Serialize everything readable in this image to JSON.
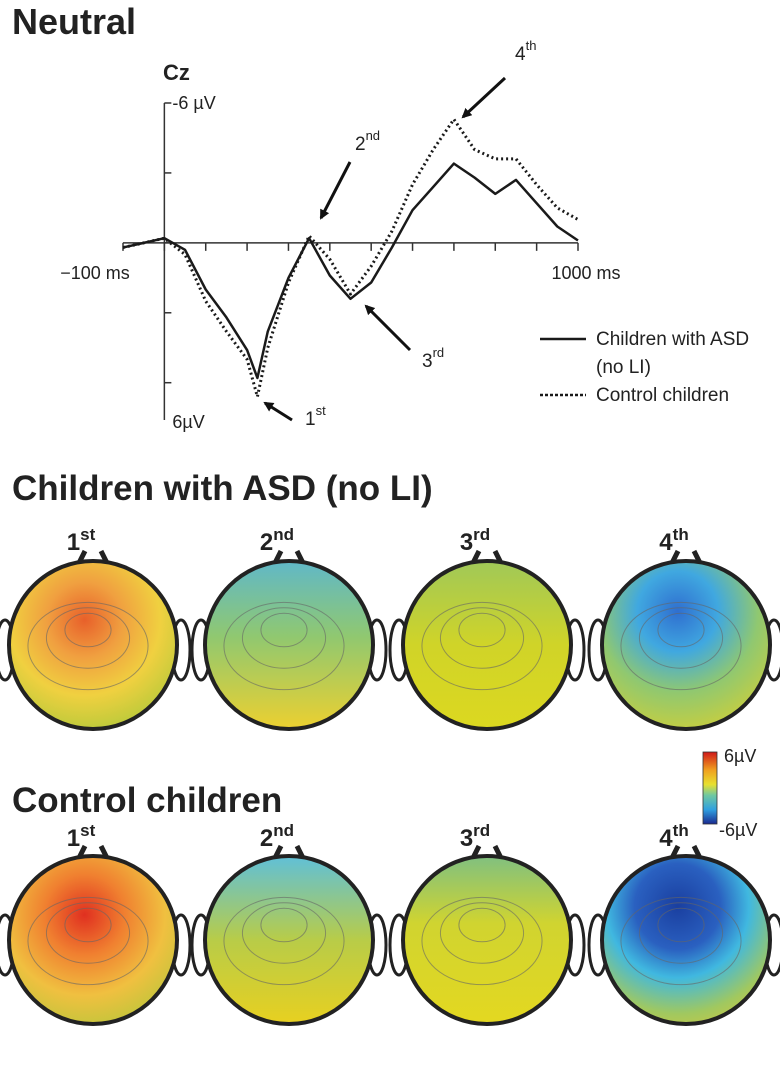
{
  "title": "Neutral",
  "chart_data": {
    "type": "line",
    "channel": "Cz",
    "x": [
      -100,
      -50,
      0,
      50,
      100,
      150,
      200,
      225,
      250,
      300,
      350,
      400,
      450,
      500,
      550,
      600,
      650,
      700,
      750,
      800,
      850,
      900,
      950,
      1000
    ],
    "series": [
      {
        "name": "Children with ASD (no LI)",
        "color": "#1a1a1a",
        "dash": "solid",
        "values": [
          0.2,
          0,
          -0.2,
          0.3,
          2.0,
          3.2,
          4.6,
          5.8,
          3.8,
          1.5,
          -0.2,
          1.4,
          2.4,
          1.7,
          0.2,
          -1.4,
          -2.4,
          -3.4,
          -2.8,
          -2.1,
          -2.7,
          -1.7,
          -0.7,
          -0.1
        ]
      },
      {
        "name": "Control children",
        "color": "#1a1a1a",
        "dash": "dotted",
        "values": [
          0.2,
          0,
          -0.2,
          0.5,
          2.5,
          3.8,
          5.0,
          6.6,
          4.5,
          1.7,
          -0.3,
          0.7,
          2.2,
          1.0,
          -0.5,
          -2.5,
          -4.0,
          -5.3,
          -4.0,
          -3.6,
          -3.6,
          -2.5,
          -1.5,
          -1.0
        ]
      }
    ],
    "xlim": [
      -100,
      1000
    ],
    "xticks": [
      {
        "value": -100,
        "label": "−100 ms"
      },
      {
        "value": 1000,
        "label": "1000 ms"
      }
    ],
    "x_minor_ticks": [
      0,
      100,
      200,
      300,
      400,
      500,
      600,
      700,
      800,
      900
    ],
    "ylim": [
      -6,
      7.6
    ],
    "yticks": [
      {
        "value": -6,
        "label": "-6 µV"
      },
      {
        "value": 6,
        "label": "6µV"
      }
    ],
    "y_minor_ticks": [
      -3,
      0,
      3
    ],
    "y_inverted": true,
    "annotations": [
      {
        "base": "1",
        "sup": "st"
      },
      {
        "base": "2",
        "sup": "nd"
      },
      {
        "base": "3",
        "sup": "rd"
      },
      {
        "base": "4",
        "sup": "th"
      }
    ]
  },
  "topomaps": {
    "groups": [
      {
        "title": "Children with ASD (no LI)",
        "maps": [
          {
            "base": "1",
            "sup": "st"
          },
          {
            "base": "2",
            "sup": "nd"
          },
          {
            "base": "3",
            "sup": "rd"
          },
          {
            "base": "4",
            "sup": "th"
          }
        ]
      },
      {
        "title": "Control children",
        "maps": [
          {
            "base": "1",
            "sup": "st"
          },
          {
            "base": "2",
            "sup": "nd"
          },
          {
            "base": "3",
            "sup": "rd"
          },
          {
            "base": "4",
            "sup": "th"
          }
        ]
      }
    ],
    "colorbar": {
      "max_label": "6µV",
      "min_label": "-6µV"
    }
  }
}
